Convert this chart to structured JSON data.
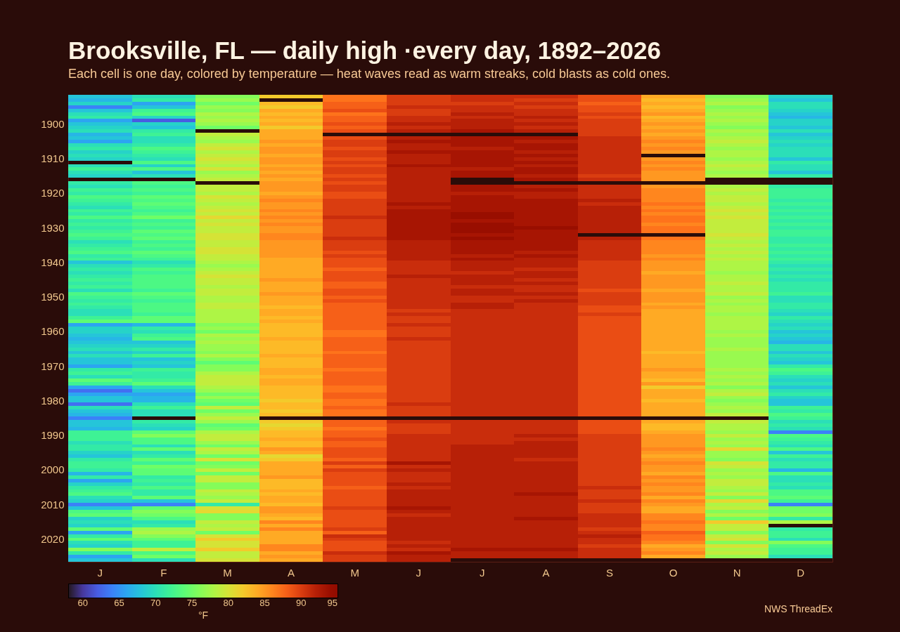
{
  "chart_data": {
    "type": "heatmap",
    "title": "Brooksville, FL — daily high ·every day, 1892–2026",
    "subtitle": "Each cell is one day, colored by temperature — heat waves read as warm streaks, cold blasts as cold ones.",
    "categories": [
      "J",
      "F",
      "M",
      "A",
      "M",
      "J",
      "J",
      "A",
      "S",
      "O",
      "N",
      "D"
    ],
    "y_categories": [
      null,
      null,
      null,
      null,
      null,
      null,
      null,
      null,
      "1900",
      null,
      null,
      null,
      null,
      null,
      null,
      null,
      null,
      null,
      "1910",
      null,
      null,
      null,
      null,
      null,
      null,
      null,
      null,
      null,
      "1920",
      null,
      null,
      null,
      null,
      null,
      null,
      null,
      null,
      null,
      "1930",
      null,
      null,
      null,
      null,
      null,
      null,
      null,
      null,
      null,
      "1940",
      null,
      null,
      null,
      null,
      null,
      null,
      null,
      null,
      null,
      "1950",
      null,
      null,
      null,
      null,
      null,
      null,
      null,
      null,
      null,
      "1960",
      null,
      null,
      null,
      null,
      null,
      null,
      null,
      null,
      null,
      "1970",
      null,
      null,
      null,
      null,
      null,
      null,
      null,
      null,
      null,
      "1980",
      null,
      null,
      null,
      null,
      null,
      null,
      null,
      null,
      null,
      "1990",
      null,
      null,
      null,
      null,
      null,
      null,
      null,
      null,
      null,
      "2000",
      null,
      null,
      null,
      null,
      null,
      null,
      null,
      null,
      null,
      "2010",
      null,
      null,
      null,
      null,
      null,
      null,
      null,
      null,
      null,
      "2020",
      null,
      null,
      null,
      null,
      null,
      null
    ],
    "cells": [
      [
        68,
        70,
        76,
        82,
        87,
        90,
        91,
        91,
        89,
        84,
        76,
        69
      ],
      [
        67,
        71,
        77,
        null,
        87,
        90,
        91,
        90,
        89,
        83,
        77,
        68
      ],
      [
        69,
        66,
        75,
        83,
        88,
        90,
        90,
        91,
        88,
        84,
        78,
        70
      ],
      [
        64,
        68,
        77,
        82,
        88,
        91,
        91,
        90,
        89,
        83,
        76,
        70
      ],
      [
        68,
        72,
        76,
        84,
        89,
        90,
        91,
        91,
        89,
        84,
        77,
        69
      ],
      [
        70,
        73,
        78,
        83,
        87,
        90,
        92,
        91,
        90,
        85,
        78,
        68
      ],
      [
        71,
        69,
        77,
        84,
        88,
        91,
        91,
        92,
        89,
        83,
        77,
        67
      ],
      [
        66,
        62,
        78,
        83,
        88,
        91,
        92,
        91,
        90,
        84,
        78,
        69
      ],
      [
        68,
        69,
        77,
        84,
        89,
        92,
        92,
        92,
        90,
        85,
        77,
        69
      ],
      [
        69,
        68,
        75,
        82,
        88,
        91,
        92,
        91,
        90,
        84,
        76,
        68
      ],
      [
        70,
        71,
        null,
        84,
        89,
        92,
        93,
        92,
        90,
        85,
        78,
        70
      ],
      [
        67,
        72,
        79,
        84,
        null,
        null,
        null,
        null,
        90,
        84,
        77,
        68
      ],
      [
        68,
        70,
        78,
        84,
        89,
        92,
        93,
        93,
        91,
        85,
        78,
        69
      ],
      [
        66,
        70,
        77,
        85,
        90,
        93,
        93,
        92,
        91,
        86,
        79,
        70
      ],
      [
        70,
        71,
        79,
        84,
        90,
        92,
        93,
        93,
        91,
        85,
        78,
        69
      ],
      [
        71,
        73,
        80,
        85,
        89,
        92,
        92,
        93,
        91,
        86,
        77,
        70
      ],
      [
        69,
        72,
        78,
        85,
        90,
        93,
        93,
        92,
        91,
        85,
        78,
        70
      ],
      [
        70,
        71,
        79,
        84,
        90,
        92,
        93,
        93,
        91,
        null,
        78,
        70
      ],
      [
        69,
        70,
        80,
        85,
        89,
        92,
        93,
        92,
        91,
        85,
        77,
        68
      ],
      [
        null,
        73,
        79,
        85,
        90,
        92,
        93,
        93,
        91,
        86,
        78,
        71
      ],
      [
        70,
        69,
        78,
        84,
        89,
        93,
        93,
        92,
        91,
        85,
        79,
        70
      ],
      [
        72,
        73,
        80,
        85,
        90,
        92,
        92,
        93,
        91,
        86,
        78,
        70
      ],
      [
        70,
        68,
        77,
        84,
        90,
        92,
        93,
        93,
        91,
        85,
        77,
        68
      ],
      [
        69,
        70,
        78,
        85,
        89,
        92,
        93,
        92,
        90,
        85,
        78,
        71
      ],
      [
        null,
        null,
        79,
        84,
        90,
        92,
        null,
        93,
        91,
        85,
        null,
        null
      ],
      [
        71,
        73,
        null,
        85,
        89,
        92,
        null,
        null,
        null,
        null,
        null,
        null
      ],
      [
        70,
        72,
        79,
        85,
        90,
        92,
        93,
        92,
        91,
        85,
        78,
        71
      ],
      [
        72,
        73,
        79,
        85,
        90,
        92,
        93,
        93,
        91,
        86,
        79,
        72
      ],
      [
        71,
        72,
        78,
        84,
        89,
        92,
        92,
        92,
        91,
        86,
        78,
        72
      ],
      [
        73,
        74,
        80,
        85,
        89,
        92,
        93,
        92,
        91,
        86,
        79,
        72
      ],
      [
        72,
        73,
        79,
        86,
        90,
        92,
        93,
        93,
        92,
        86,
        79,
        71
      ],
      [
        71,
        74,
        78,
        85,
        90,
        93,
        93,
        93,
        91,
        87,
        78,
        72
      ],
      [
        70,
        73,
        79,
        85,
        90,
        92,
        93,
        93,
        92,
        86,
        79,
        71
      ],
      [
        72,
        72,
        80,
        86,
        90,
        93,
        93,
        93,
        92,
        87,
        80,
        72
      ],
      [
        71,
        73,
        79,
        85,
        90,
        93,
        94,
        93,
        92,
        86,
        79,
        71
      ],
      [
        73,
        75,
        81,
        86,
        91,
        93,
        94,
        93,
        92,
        87,
        80,
        72
      ],
      [
        71,
        72,
        79,
        85,
        90,
        93,
        93,
        93,
        92,
        87,
        79,
        71
      ],
      [
        72,
        73,
        80,
        86,
        90,
        93,
        94,
        93,
        92,
        86,
        79,
        72
      ],
      [
        71,
        72,
        79,
        85,
        90,
        93,
        94,
        94,
        92,
        87,
        79,
        71
      ],
      [
        72,
        74,
        79,
        85,
        90,
        93,
        94,
        93,
        92,
        87,
        79,
        72
      ],
      [
        73,
        73,
        80,
        86,
        90,
        93,
        93,
        93,
        null,
        null,
        80,
        72
      ],
      [
        72,
        74,
        80,
        86,
        91,
        93,
        94,
        93,
        92,
        87,
        79,
        71
      ],
      [
        70,
        72,
        79,
        85,
        90,
        92,
        93,
        93,
        91,
        86,
        78,
        71
      ],
      [
        71,
        73,
        79,
        85,
        90,
        92,
        93,
        93,
        91,
        86,
        79,
        72
      ],
      [
        72,
        72,
        80,
        85,
        90,
        92,
        93,
        93,
        91,
        86,
        78,
        71
      ],
      [
        73,
        74,
        80,
        85,
        89,
        92,
        93,
        92,
        91,
        86,
        79,
        72
      ],
      [
        71,
        73,
        79,
        85,
        90,
        92,
        92,
        93,
        91,
        85,
        78,
        71
      ],
      [
        72,
        72,
        79,
        84,
        89,
        92,
        93,
        92,
        91,
        86,
        79,
        72
      ],
      [
        68,
        70,
        78,
        84,
        89,
        91,
        92,
        92,
        90,
        85,
        78,
        71
      ],
      [
        70,
        71,
        77,
        84,
        89,
        91,
        92,
        92,
        90,
        85,
        78,
        70
      ],
      [
        71,
        73,
        78,
        84,
        88,
        91,
        92,
        91,
        90,
        85,
        78,
        71
      ],
      [
        70,
        72,
        79,
        84,
        89,
        91,
        91,
        92,
        90,
        84,
        77,
        70
      ],
      [
        71,
        73,
        80,
        84,
        89,
        92,
        92,
        92,
        90,
        85,
        78,
        71
      ],
      [
        72,
        73,
        79,
        85,
        89,
        91,
        92,
        91,
        90,
        85,
        78,
        70
      ],
      [
        71,
        73,
        79,
        84,
        88,
        91,
        92,
        92,
        90,
        85,
        79,
        71
      ],
      [
        72,
        73,
        78,
        84,
        88,
        91,
        91,
        91,
        90,
        85,
        78,
        71
      ],
      [
        70,
        72,
        79,
        84,
        89,
        91,
        92,
        91,
        89,
        84,
        78,
        71
      ],
      [
        73,
        74,
        79,
        85,
        89,
        91,
        92,
        92,
        90,
        85,
        79,
        72
      ],
      [
        72,
        73,
        78,
        84,
        88,
        91,
        91,
        91,
        90,
        85,
        77,
        70
      ],
      [
        71,
        72,
        78,
        84,
        89,
        91,
        91,
        92,
        90,
        85,
        78,
        70
      ],
      [
        72,
        73,
        79,
        84,
        88,
        91,
        92,
        91,
        90,
        84,
        77,
        71
      ],
      [
        71,
        73,
        79,
        83,
        88,
        91,
        92,
        91,
        89,
        85,
        78,
        71
      ],
      [
        70,
        73,
        78,
        84,
        88,
        90,
        91,
        91,
        89,
        84,
        78,
        70
      ],
      [
        70,
        72,
        78,
        84,
        88,
        91,
        91,
        91,
        90,
        84,
        77,
        69
      ],
      [
        72,
        74,
        78,
        83,
        88,
        90,
        91,
        91,
        89,
        84,
        78,
        71
      ],
      [
        74,
        74,
        78,
        84,
        88,
        90,
        91,
        91,
        89,
        84,
        78,
        70
      ],
      [
        66,
        67,
        76,
        83,
        88,
        91,
        91,
        91,
        89,
        84,
        78,
        69
      ],
      [
        69,
        71,
        77,
        83,
        88,
        90,
        91,
        91,
        89,
        84,
        78,
        70
      ],
      [
        69,
        70,
        75,
        83,
        87,
        90,
        91,
        91,
        89,
        84,
        77,
        68
      ],
      [
        68,
        72,
        78,
        83,
        87,
        90,
        91,
        91,
        89,
        84,
        78,
        69
      ],
      [
        67,
        73,
        77,
        84,
        88,
        91,
        91,
        91,
        89,
        84,
        77,
        68
      ],
      [
        68,
        68,
        78,
        83,
        88,
        90,
        91,
        91,
        89,
        84,
        77,
        67
      ],
      [
        69,
        69,
        77,
        83,
        88,
        90,
        91,
        91,
        89,
        84,
        77,
        70
      ],
      [
        70,
        71,
        77,
        83,
        88,
        90,
        91,
        91,
        89,
        84,
        78,
        70
      ],
      [
        68,
        69,
        76,
        83,
        87,
        90,
        91,
        91,
        89,
        83,
        77,
        68
      ],
      [
        70,
        72,
        78,
        84,
        88,
        90,
        91,
        91,
        89,
        84,
        77,
        70
      ],
      [
        68,
        68,
        76,
        83,
        88,
        90,
        91,
        91,
        89,
        84,
        77,
        69
      ],
      [
        68,
        69,
        74,
        83,
        88,
        90,
        91,
        91,
        89,
        84,
        77,
        68
      ],
      [
        66,
        68,
        76,
        83,
        88,
        90,
        91,
        91,
        89,
        84,
        77,
        71
      ],
      [
        71,
        72,
        76,
        84,
        87,
        90,
        91,
        91,
        89,
        85,
        78,
        73
      ],
      [
        72,
        71,
        78,
        84,
        88,
        90,
        91,
        91,
        89,
        84,
        77,
        72
      ],
      [
        70,
        71,
        79,
        83,
        88,
        90,
        91,
        91,
        89,
        84,
        78,
        70
      ],
      [
        74,
        72,
        79,
        84,
        88,
        90,
        91,
        91,
        89,
        83,
        77,
        69
      ],
      [
        72,
        74,
        79,
        84,
        88,
        90,
        91,
        91,
        89,
        85,
        78,
        70
      ],
      [
        66,
        70,
        78,
        83,
        87,
        90,
        91,
        91,
        89,
        82,
        76,
        68
      ],
      [
        63,
        68,
        77,
        83,
        87,
        90,
        91,
        91,
        89,
        84,
        78,
        70
      ],
      [
        66,
        66,
        75,
        83,
        88,
        90,
        91,
        91,
        89,
        84,
        79,
        71
      ],
      [
        68,
        67,
        77,
        83,
        88,
        90,
        91,
        91,
        89,
        84,
        77,
        69
      ],
      [
        68,
        67,
        75,
        82,
        87,
        90,
        91,
        91,
        89,
        83,
        76,
        68
      ],
      [
        63,
        70,
        74,
        83,
        87,
        91,
        91,
        91,
        89,
        84,
        77,
        68
      ],
      [
        70,
        72,
        79,
        83,
        88,
        90,
        91,
        91,
        89,
        84,
        78,
        72
      ],
      [
        68,
        70,
        75,
        82,
        87,
        90,
        91,
        91,
        89,
        84,
        77,
        71
      ],
      [
        67,
        70,
        77,
        83,
        87,
        90,
        91,
        91,
        89,
        84,
        79,
        73
      ],
      [
        64,
        null,
        79,
        null,
        null,
        null,
        null,
        null,
        null,
        null,
        null,
        72
      ],
      [
        68,
        71,
        77,
        82,
        88,
        91,
        91,
        91,
        89,
        84,
        79,
        70
      ],
      [
        68,
        70,
        74,
        81,
        88,
        90,
        91,
        91,
        89,
        83,
        78,
        71
      ],
      [
        67,
        69,
        75,
        82,
        87,
        90,
        91,
        91,
        89,
        83,
        78,
        70
      ],
      [
        72,
        74,
        78,
        83,
        88,
        90,
        91,
        91,
        89,
        84,
        77,
        64
      ],
      [
        72,
        76,
        79,
        83,
        88,
        91,
        91,
        92,
        90,
        85,
        79,
        73
      ],
      [
        72,
        73,
        79,
        84,
        89,
        91,
        91,
        91,
        90,
        85,
        77,
        72
      ],
      [
        70,
        73,
        77,
        83,
        88,
        91,
        91,
        92,
        90,
        85,
        78,
        71
      ],
      [
        71,
        70,
        75,
        83,
        88,
        91,
        92,
        92,
        90,
        85,
        77,
        70
      ],
      [
        71,
        74,
        79,
        85,
        89,
        91,
        92,
        92,
        90,
        86,
        81,
        73
      ],
      [
        69,
        70,
        78,
        84,
        89,
        91,
        92,
        92,
        90,
        85,
        77,
        68
      ],
      [
        68,
        71,
        75,
        81,
        89,
        91,
        92,
        92,
        90,
        84,
        77,
        72
      ],
      [
        71,
        74,
        80,
        82,
        88,
        91,
        92,
        91,
        90,
        85,
        76,
        70
      ],
      [
        72,
        72,
        75,
        84,
        90,
        93,
        92,
        92,
        90,
        86,
        80,
        71
      ],
      [
        72,
        75,
        76,
        84,
        88,
        91,
        92,
        92,
        90,
        85,
        79,
        71
      ],
      [
        71,
        74,
        79,
        84,
        90,
        92,
        92,
        92,
        90,
        85,
        77,
        67
      ],
      [
        67,
        74,
        75,
        84,
        89,
        91,
        92,
        92,
        90,
        84,
        78,
        73
      ],
      [
        71,
        71,
        79,
        85,
        89,
        91,
        92,
        92,
        90,
        86,
        77,
        70
      ],
      [
        66,
        72,
        79,
        83,
        89,
        91,
        92,
        92,
        90,
        85,
        79,
        70
      ],
      [
        69,
        71,
        76,
        83,
        89,
        92,
        92,
        92,
        90,
        86,
        79,
        71
      ],
      [
        71,
        73,
        76,
        83,
        88,
        91,
        92,
        92,
        91,
        85,
        78,
        70
      ],
      [
        72,
        71,
        79,
        84,
        89,
        92,
        92,
        92,
        90,
        85,
        77,
        73
      ],
      [
        73,
        71,
        78,
        83,
        89,
        92,
        92,
        93,
        90,
        86,
        79,
        73
      ],
      [
        70,
        74,
        77,
        84,
        89,
        92,
        92,
        92,
        90,
        84,
        76,
        74
      ],
      [
        69,
        68,
        79,
        84,
        89,
        92,
        92,
        92,
        91,
        86,
        81,
        72
      ],
      [
        64,
        64,
        71,
        83,
        89,
        92,
        92,
        92,
        90,
        85,
        78,
        64
      ],
      [
        68,
        74,
        80,
        85,
        90,
        93,
        92,
        92,
        90,
        84,
        79,
        75
      ],
      [
        73,
        76,
        81,
        85,
        89,
        92,
        92,
        92,
        90,
        84,
        76,
        75
      ],
      [
        74,
        75,
        76,
        84,
        89,
        91,
        92,
        92,
        91,
        86,
        78,
        76
      ],
      [
        69,
        73,
        76,
        83,
        89,
        92,
        92,
        93,
        91,
        86,
        75,
        71
      ],
      [
        70,
        70,
        79,
        86,
        89,
        92,
        92,
        92,
        91,
        87,
        82,
        78
      ],
      [
        69,
        71,
        78,
        84,
        89,
        92,
        92,
        92,
        91,
        86,
        79,
        null
      ],
      [
        74,
        77,
        79,
        86,
        90,
        92,
        92,
        92,
        90,
        86,
        79,
        71
      ],
      [
        66,
        78,
        75,
        84,
        88,
        92,
        92,
        92,
        91,
        88,
        76,
        72
      ],
      [
        71,
        76,
        80,
        84,
        91,
        92,
        92,
        92,
        92,
        87,
        79,
        72
      ],
      [
        74,
        74,
        82,
        84,
        90,
        92,
        92,
        92,
        91,
        87,
        80,
        70
      ],
      [
        70,
        72,
        80,
        84,
        89,
        91,
        92,
        92,
        91,
        86,
        76,
        76
      ],
      [
        69,
        72,
        80,
        86,
        89,
        92,
        92,
        92,
        90,
        84,
        80,
        73
      ],
      [
        76,
        79,
        82,
        86,
        89,
        91,
        93,
        93,
        91,
        85,
        78,
        72
      ],
      [
        71,
        73,
        79,
        84,
        91,
        93,
        92,
        92,
        91,
        86,
        79,
        72
      ],
      [
        66,
        75,
        79,
        85,
        90,
        92,
        92,
        92,
        91,
        84,
        77,
        70
      ],
      [
        68,
        70,
        80,
        84,
        90,
        92,
        null,
        null,
        null,
        null,
        null,
        null
      ]
    ],
    "clim": [
      58,
      95
    ],
    "cticks": [
      60,
      65,
      70,
      75,
      80,
      85,
      90,
      95
    ],
    "clabel": "°F",
    "annotations": [
      "NWS ThreadEx"
    ]
  }
}
